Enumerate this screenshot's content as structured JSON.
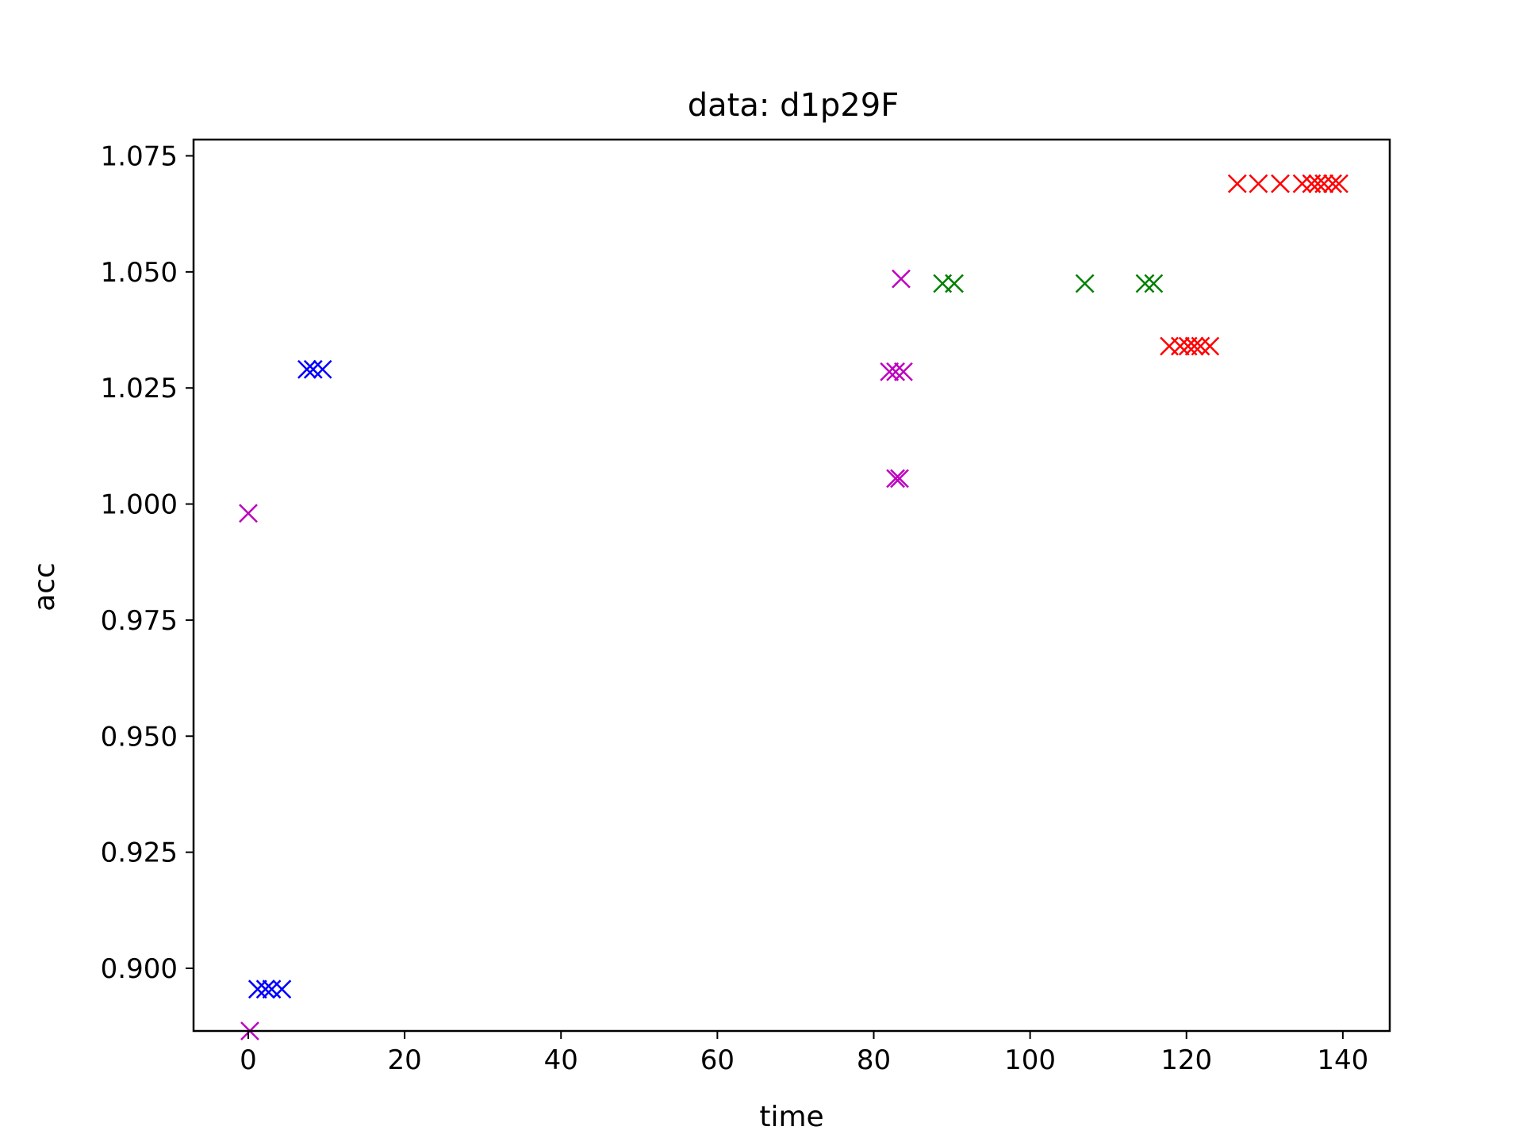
{
  "chart_data": {
    "type": "scatter",
    "title": "data: d1p29F",
    "xlabel": "time",
    "ylabel": "acc",
    "xlim": [
      -7,
      146
    ],
    "ylim": [
      0.8865,
      1.0785
    ],
    "xticks": [
      "0",
      "20",
      "40",
      "60",
      "80",
      "100",
      "120",
      "140"
    ],
    "yticks": [
      "0.900",
      "0.925",
      "0.950",
      "0.975",
      "1.000",
      "1.025",
      "1.050",
      "1.075"
    ],
    "grid": false,
    "marker": "x",
    "series": [
      {
        "color": "#bf00bf",
        "points": [
          [
            0,
            0.998
          ],
          [
            0.2,
            0.8865
          ],
          [
            82,
            1.0285
          ],
          [
            82.8,
            1.0285
          ],
          [
            83.8,
            1.0285
          ],
          [
            82.8,
            1.0055
          ],
          [
            83.3,
            1.0055
          ],
          [
            83.5,
            1.0485
          ]
        ]
      },
      {
        "color": "#0000ff",
        "points": [
          [
            1.2,
            0.8955
          ],
          [
            2.2,
            0.8955
          ],
          [
            3.0,
            0.8955
          ],
          [
            4.3,
            0.8955
          ],
          [
            7.5,
            1.029
          ],
          [
            8.3,
            1.029
          ],
          [
            9.5,
            1.029
          ]
        ]
      },
      {
        "color": "#008000",
        "points": [
          [
            88.8,
            1.0475
          ],
          [
            90.3,
            1.0475
          ],
          [
            107,
            1.0475
          ],
          [
            114.7,
            1.0475
          ],
          [
            115.8,
            1.0475
          ]
        ]
      },
      {
        "color": "#ff0000",
        "points": [
          [
            117.8,
            1.034
          ],
          [
            119.2,
            1.034
          ],
          [
            120.2,
            1.034
          ],
          [
            121.0,
            1.034
          ],
          [
            121.8,
            1.034
          ],
          [
            123.0,
            1.034
          ],
          [
            126.5,
            1.069
          ],
          [
            129.2,
            1.069
          ],
          [
            132.0,
            1.069
          ],
          [
            134.8,
            1.069
          ],
          [
            136.0,
            1.069
          ],
          [
            136.8,
            1.069
          ],
          [
            137.6,
            1.069
          ],
          [
            138.7,
            1.069
          ],
          [
            139.5,
            1.069
          ]
        ]
      }
    ]
  }
}
